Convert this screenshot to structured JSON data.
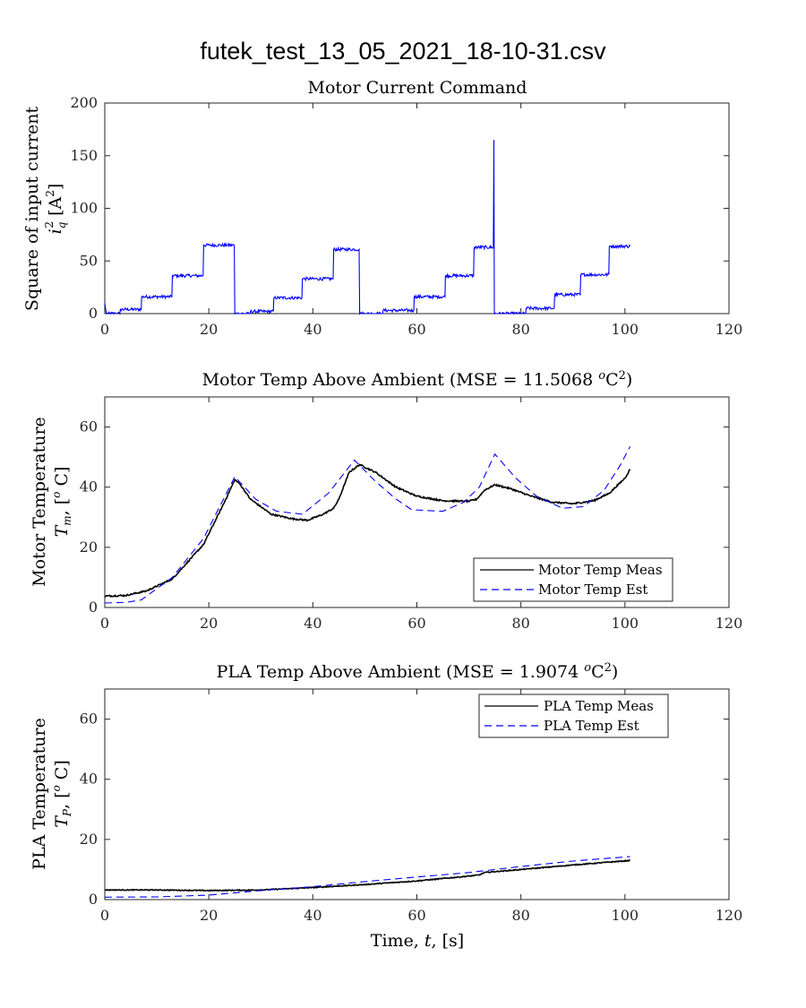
{
  "figure_title": "futek_test_13_05_2021_18-10-31.csv",
  "chart_data": [
    {
      "type": "line",
      "title": "Motor Current Command",
      "ylabel_line1": "Square of input current",
      "ylabel_line2": "i_q^2 [A^2]",
      "xlabel": "",
      "xlim": [
        0,
        120
      ],
      "ylim": [
        0,
        200
      ],
      "xticks": [
        0,
        20,
        40,
        60,
        80,
        100,
        120
      ],
      "yticks": [
        0,
        50,
        100,
        150,
        200
      ],
      "series": [
        {
          "color": "#0000ff",
          "style": "solid",
          "noise": 1.5,
          "points": [
            [
              0,
              10
            ],
            [
              0.3,
              0
            ],
            [
              2.9,
              0
            ],
            [
              3,
              4
            ],
            [
              7,
              4
            ],
            [
              7.1,
              16
            ],
            [
              12.9,
              16
            ],
            [
              13,
              36
            ],
            [
              18.9,
              36
            ],
            [
              19,
              65
            ],
            [
              24.9,
              65
            ],
            [
              25,
              0
            ],
            [
              27.9,
              0
            ],
            [
              28,
              2
            ],
            [
              32.4,
              2
            ],
            [
              32.5,
              15
            ],
            [
              37.9,
              15
            ],
            [
              38,
              33
            ],
            [
              43.9,
              33
            ],
            [
              44,
              61
            ],
            [
              48.9,
              61
            ],
            [
              49,
              0
            ],
            [
              53.4,
              0
            ],
            [
              53.5,
              3
            ],
            [
              59.4,
              3
            ],
            [
              59.5,
              16
            ],
            [
              65.4,
              16
            ],
            [
              65.5,
              36
            ],
            [
              70.9,
              36
            ],
            [
              71,
              63
            ],
            [
              74.7,
              63
            ],
            [
              74.8,
              165
            ],
            [
              74.9,
              0
            ],
            [
              80.9,
              0
            ],
            [
              81,
              5
            ],
            [
              86.4,
              5
            ],
            [
              86.5,
              18
            ],
            [
              91.4,
              18
            ],
            [
              91.5,
              37
            ],
            [
              96.9,
              37
            ],
            [
              97,
              64
            ],
            [
              101,
              64
            ]
          ]
        }
      ]
    },
    {
      "type": "line",
      "title": "Motor Temp Above Ambient (MSE = 11.5068 °C²)",
      "ylabel_line1": "Motor Temperature",
      "ylabel_line2": "T_m, [°C]",
      "xlabel": "",
      "xlim": [
        0,
        120
      ],
      "ylim": [
        0,
        70
      ],
      "xticks": [
        0,
        20,
        40,
        60,
        80,
        100,
        120
      ],
      "yticks": [
        0,
        20,
        40,
        60
      ],
      "legend": {
        "position": "bottom-right",
        "entries": [
          "Motor Temp Meas",
          "Motor Temp Est"
        ]
      },
      "series": [
        {
          "name": "Motor Temp Meas",
          "color": "#000000",
          "style": "solid",
          "noise": 0.25,
          "points": [
            [
              0,
              3.8
            ],
            [
              4,
              4.0
            ],
            [
              8,
              5.5
            ],
            [
              13,
              9.5
            ],
            [
              19,
              21
            ],
            [
              23,
              35
            ],
            [
              25,
              42.5
            ],
            [
              26,
              41
            ],
            [
              28,
              36
            ],
            [
              32,
              31
            ],
            [
              36,
              29.5
            ],
            [
              39,
              29
            ],
            [
              42,
              31
            ],
            [
              44,
              33
            ],
            [
              45,
              36
            ],
            [
              47,
              45
            ],
            [
              49,
              47.5
            ],
            [
              52,
              45
            ],
            [
              56,
              40
            ],
            [
              60,
              37
            ],
            [
              65,
              35.5
            ],
            [
              70,
              35.3
            ],
            [
              71.5,
              36
            ],
            [
              73,
              39
            ],
            [
              75,
              40.8
            ],
            [
              78,
              39.5
            ],
            [
              82,
              37
            ],
            [
              86,
              35
            ],
            [
              90,
              34.5
            ],
            [
              94,
              35.5
            ],
            [
              97,
              38
            ],
            [
              100,
              43
            ],
            [
              101,
              46
            ]
          ]
        },
        {
          "name": "Motor Temp Est",
          "color": "#0000ff",
          "style": "dashed",
          "noise": 0,
          "points": [
            [
              0,
              1.5
            ],
            [
              4,
              1.7
            ],
            [
              7,
              2.5
            ],
            [
              13,
              10
            ],
            [
              19,
              23
            ],
            [
              25,
              43.5
            ],
            [
              29,
              36
            ],
            [
              33,
              32
            ],
            [
              38,
              31
            ],
            [
              43,
              38
            ],
            [
              48,
              49
            ],
            [
              52,
              42
            ],
            [
              56,
              36
            ],
            [
              59,
              32.5
            ],
            [
              65,
              32
            ],
            [
              69,
              35
            ],
            [
              72,
              40
            ],
            [
              75,
              51
            ],
            [
              79,
              43
            ],
            [
              83,
              37
            ],
            [
              88,
              33
            ],
            [
              92,
              33.5
            ],
            [
              96,
              39
            ],
            [
              99,
              47
            ],
            [
              101,
              53.5
            ]
          ]
        }
      ]
    },
    {
      "type": "line",
      "title": "PLA Temp Above Ambient (MSE = 1.9074 °C²)",
      "ylabel_line1": "PLA Temperature",
      "ylabel_line2": "T_P, [°C]",
      "xlabel": "Time, t, [s]",
      "xlim": [
        0,
        120
      ],
      "ylim": [
        0,
        70
      ],
      "xticks": [
        0,
        20,
        40,
        60,
        80,
        100,
        120
      ],
      "yticks": [
        0,
        20,
        40,
        60
      ],
      "legend": {
        "position": "top-right",
        "entries": [
          "PLA Temp Meas",
          "PLA Temp Est"
        ]
      },
      "series": [
        {
          "name": "PLA Temp Meas",
          "color": "#000000",
          "style": "solid",
          "noise": 0.15,
          "points": [
            [
              0,
              3.2
            ],
            [
              10,
              3.2
            ],
            [
              20,
              3.0
            ],
            [
              30,
              3.2
            ],
            [
              40,
              4.0
            ],
            [
              50,
              5.0
            ],
            [
              60,
              6.2
            ],
            [
              70,
              7.8
            ],
            [
              72,
              8.2
            ],
            [
              73,
              9.0
            ],
            [
              80,
              10.0
            ],
            [
              90,
              11.5
            ],
            [
              101,
              13.0
            ]
          ]
        },
        {
          "name": "PLA Temp Est",
          "color": "#0000ff",
          "style": "dashed",
          "noise": 0,
          "points": [
            [
              0,
              0.8
            ],
            [
              10,
              0.9
            ],
            [
              20,
              1.5
            ],
            [
              30,
              3.0
            ],
            [
              40,
              4.3
            ],
            [
              50,
              6.0
            ],
            [
              60,
              7.5
            ],
            [
              70,
              9.0
            ],
            [
              80,
              11.0
            ],
            [
              90,
              12.8
            ],
            [
              101,
              14.3
            ]
          ]
        }
      ]
    }
  ]
}
